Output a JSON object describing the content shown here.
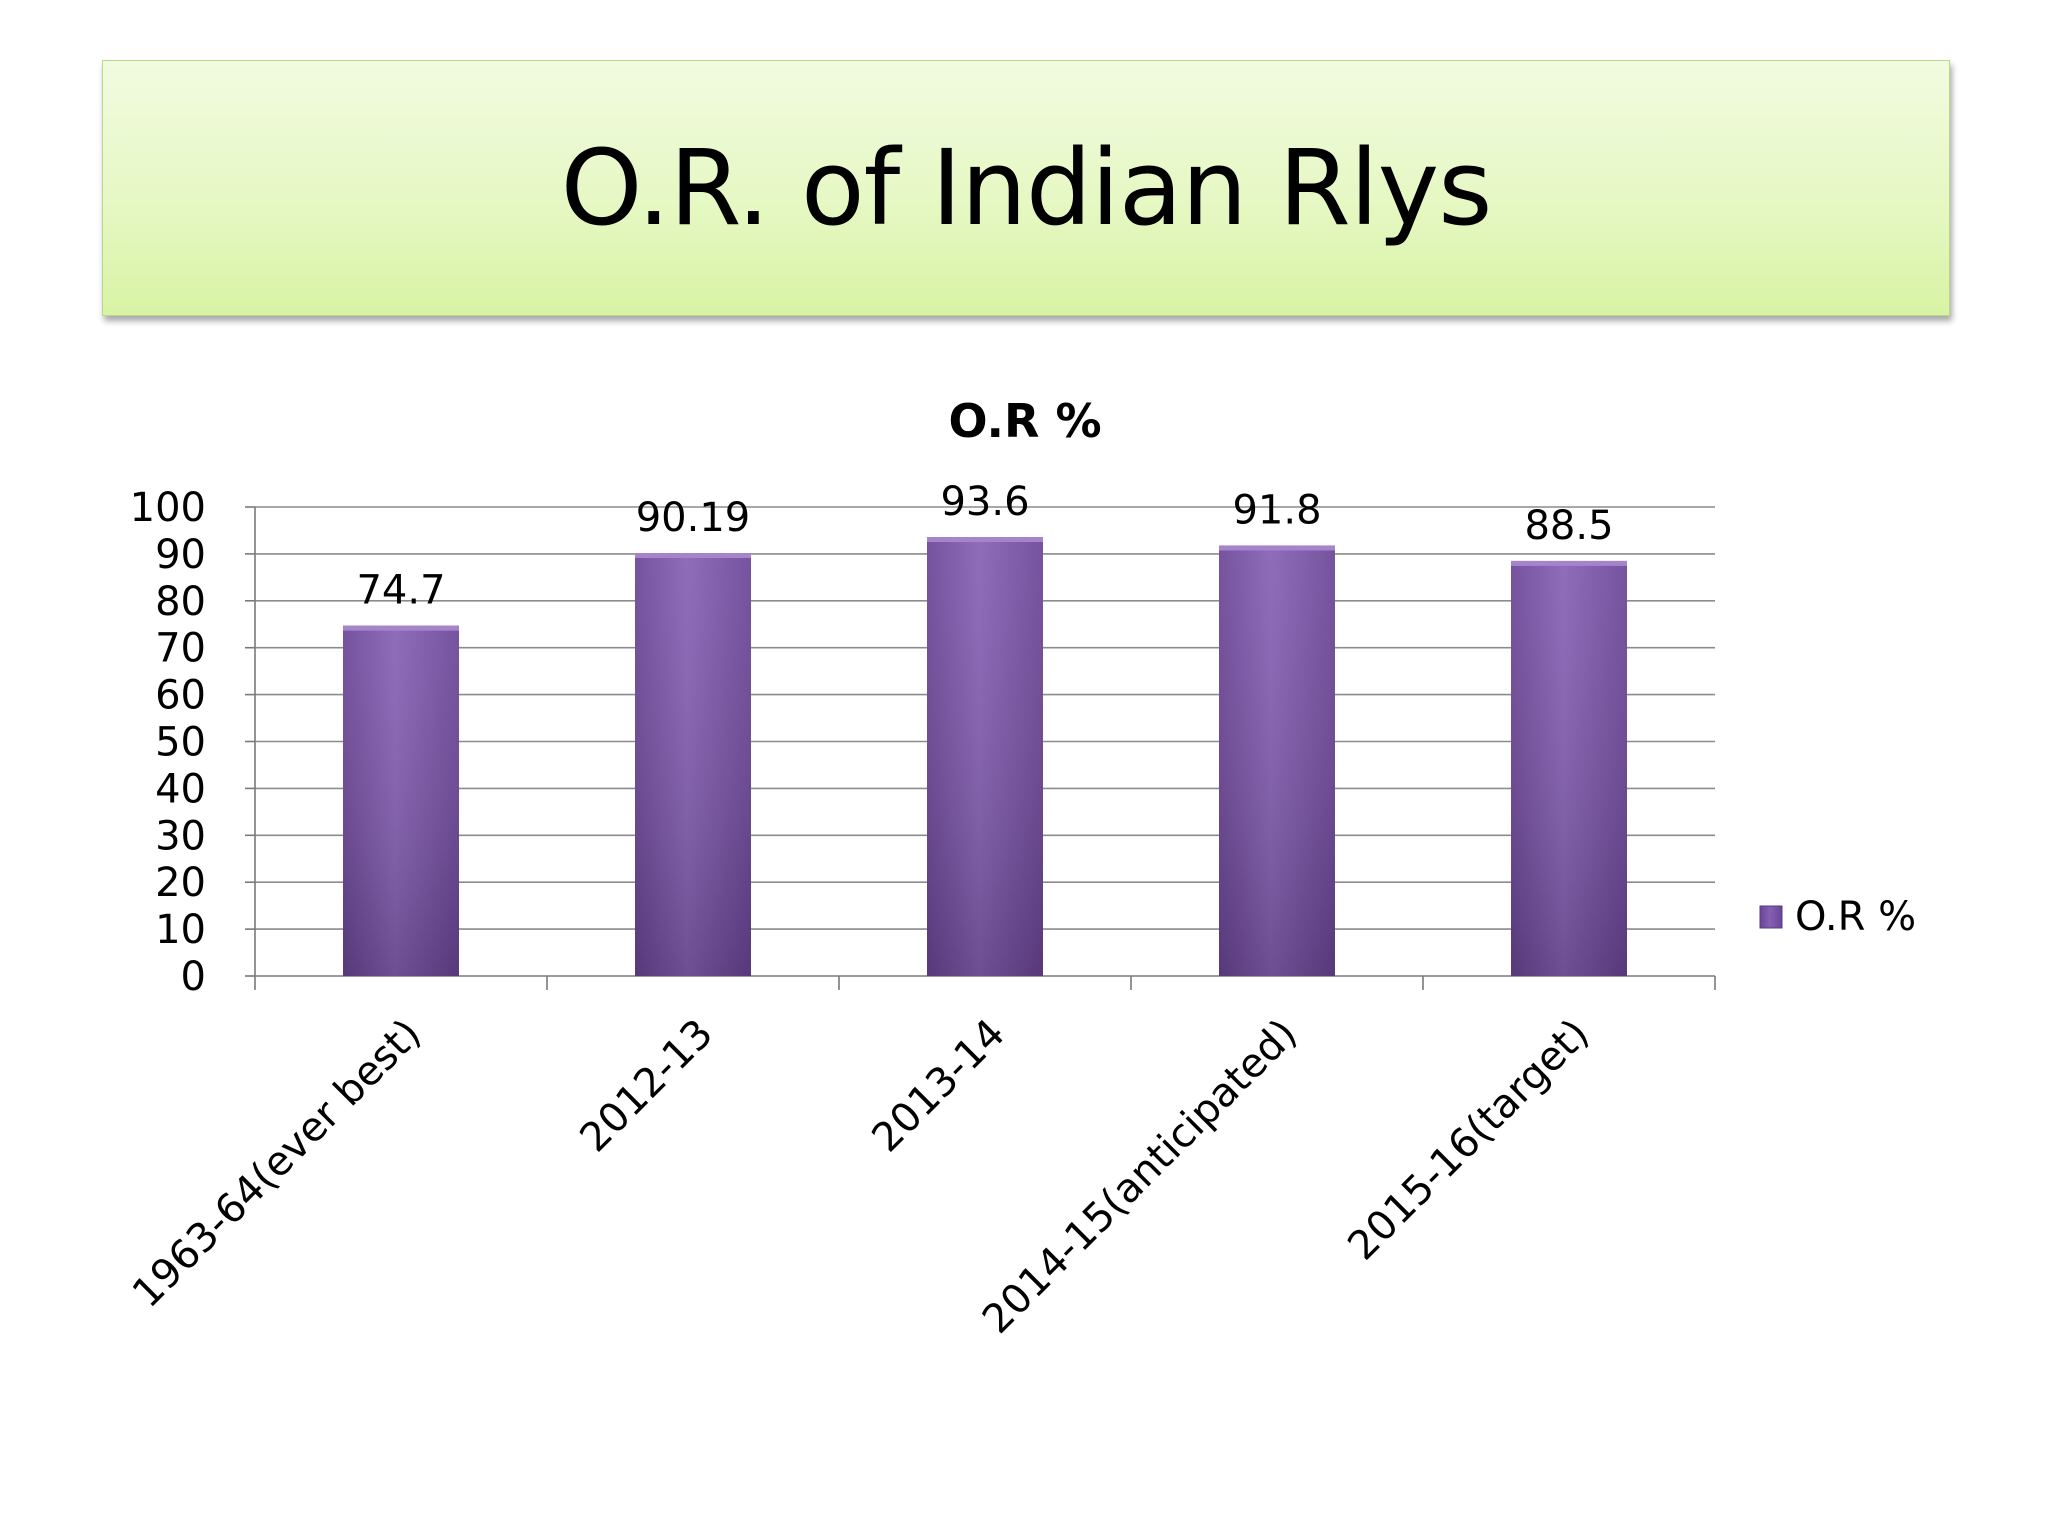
{
  "slide": {
    "title": "O.R. of Indian Rlys"
  },
  "colors": {
    "bar": "#7b52a6",
    "title_bg": "#e4f7c0",
    "grid": "#8c8c8c"
  },
  "chart_data": {
    "type": "bar",
    "title": "O.R %",
    "categories": [
      "1963-64(ever best)",
      "2012-13",
      "2013-14",
      "2014-15(anticipated)",
      "2015-16(target)"
    ],
    "series": [
      {
        "name": "O.R %",
        "values": [
          74.7,
          90.19,
          93.6,
          91.8,
          88.5
        ]
      }
    ],
    "data_labels": [
      "74.7",
      "90.19",
      "93.6",
      "91.8",
      "88.5"
    ],
    "ylim": [
      0,
      100
    ],
    "yticks": [
      0,
      10,
      20,
      30,
      40,
      50,
      60,
      70,
      80,
      90,
      100
    ],
    "grid": true,
    "legend": "right",
    "xlabel": "",
    "ylabel": ""
  }
}
